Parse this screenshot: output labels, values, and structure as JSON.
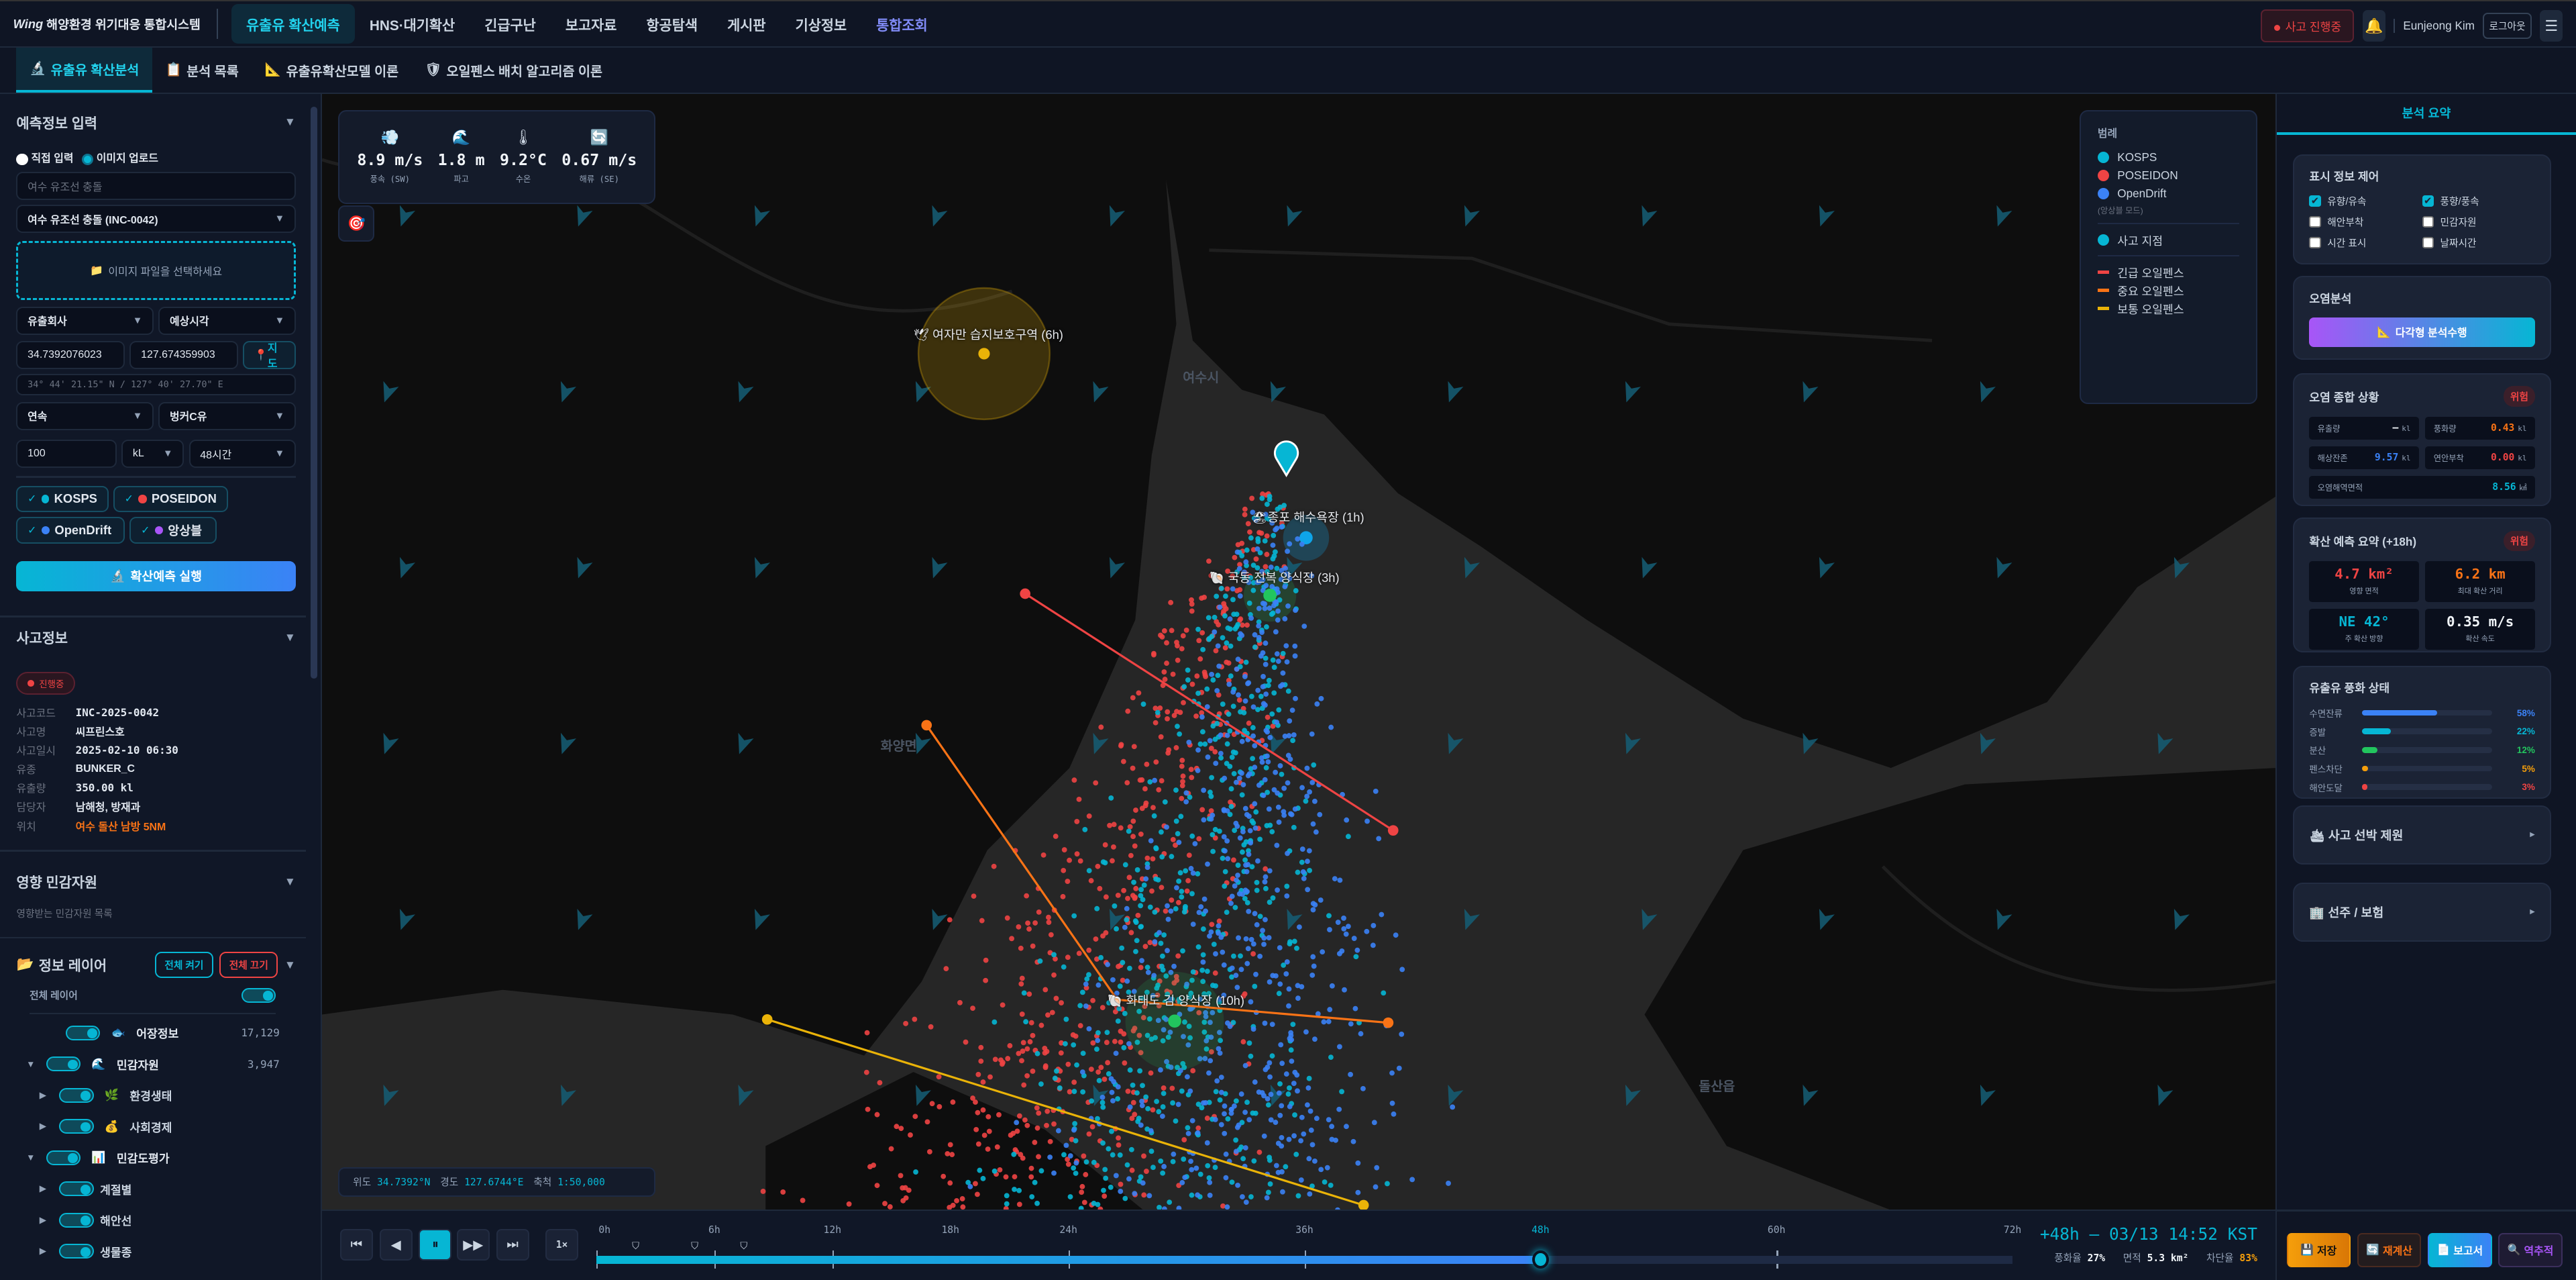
{
  "app": {
    "logo": "Wing",
    "title": "해양환경 위기대응 통합시스템"
  },
  "nav": {
    "items": [
      "유출유 확산예측",
      "HNS·대기확산",
      "긴급구난",
      "보고자료",
      "항공탐색",
      "게시판",
      "기상정보",
      "통합조회"
    ],
    "active_index": 0,
    "incident_badge": "사고 진행중",
    "bell_icon": "bell-icon",
    "user": "Eunjeong Kim",
    "logout": "로그아웃",
    "menu_icon": "hamburger-icon"
  },
  "subtabs": [
    {
      "label": "유출유 확산분석",
      "icon": "microscope-icon",
      "active": true
    },
    {
      "label": "분석 목록",
      "icon": "clipboard-icon"
    },
    {
      "label": "유출유확산모델 이론",
      "icon": "triangle-ruler-icon"
    },
    {
      "label": "오일펜스 배치 알고리즘 이론",
      "icon": "shield-icon"
    }
  ],
  "predict_input": {
    "title": "예측정보 입력",
    "mode_options": [
      "직접 입력",
      "이미지 업로드"
    ],
    "mode_selected": "이미지 업로드",
    "name_placeholder": "여수 유조선 충돌",
    "incident_select": "여수 유조선 충돌 (INC-0042)",
    "dropzone": "이미지 파일을 선택하세요",
    "company_select": "유출회사",
    "time_select": "예상시각",
    "lat": "34.7392076023",
    "lng": "127.674359903",
    "map_button": "지도",
    "dms": "34° 44' 21.15\" N / 127° 40' 27.70\" E",
    "spill_type": "연속",
    "oil_type": "벙커C유",
    "amount": "100",
    "unit": "kL",
    "duration": "48시간",
    "models": [
      {
        "label": "KOSPS",
        "color": "#06b6d4",
        "checked": true
      },
      {
        "label": "POSEIDON",
        "color": "#ef4444",
        "checked": true
      },
      {
        "label": "OpenDrift",
        "color": "#3b82f6",
        "checked": true
      },
      {
        "label": "앙상블",
        "color": "#a855f7",
        "checked": true
      }
    ],
    "run_button": "확산예측 실행"
  },
  "incident": {
    "title": "사고정보",
    "status": "진행중",
    "rows": [
      {
        "k": "사고코드",
        "v": "INC-2025-0042"
      },
      {
        "k": "사고명",
        "v": "씨프린스호"
      },
      {
        "k": "사고일시",
        "v": "2025-02-10 06:30"
      },
      {
        "k": "유종",
        "v": "BUNKER_C"
      },
      {
        "k": "유출량",
        "v": "350.00 kl"
      },
      {
        "k": "담당자",
        "v": "남해청, 방재과"
      },
      {
        "k": "위치",
        "v": "여수 돌산 남방 5NM"
      }
    ]
  },
  "sensitive": {
    "title": "영향 민감자원",
    "subtitle": "영향받는 민감자원 목록"
  },
  "layers": {
    "title": "정보 레이어",
    "all_on": "전체 켜기",
    "all_off": "전체 끄기",
    "all_label": "전체 레이어",
    "items": [
      {
        "label": "어장정보",
        "icon": "fish-icon",
        "glyph": "🐟",
        "count": "17,129",
        "level": 0,
        "expander": ""
      },
      {
        "label": "민감자원",
        "icon": "wave-icon",
        "glyph": "🌊",
        "count": "3,947",
        "level": 0,
        "expander": "▼"
      },
      {
        "label": "환경생태",
        "icon": "plant-icon",
        "glyph": "🌿",
        "count": "",
        "level": 1,
        "expander": "▶"
      },
      {
        "label": "사회경제",
        "icon": "money-bag-icon",
        "glyph": "💰",
        "count": "",
        "level": 1,
        "expander": "▶"
      },
      {
        "label": "민감도평가",
        "icon": "bar-chart-icon",
        "glyph": "📊",
        "count": "",
        "level": 0,
        "expander": "▼"
      },
      {
        "label": "계절별",
        "icon": "",
        "glyph": "",
        "count": "",
        "level": 1,
        "expander": "▶"
      },
      {
        "label": "해안선",
        "icon": "",
        "glyph": "",
        "count": "",
        "level": 1,
        "expander": "▶"
      },
      {
        "label": "생물종",
        "icon": "",
        "glyph": "",
        "count": "",
        "level": 1,
        "expander": "▶"
      }
    ]
  },
  "weather": [
    {
      "icon": "wind-icon",
      "glyph": "💨",
      "value": "8.9 m/s",
      "label": "풍속 (SW)"
    },
    {
      "icon": "wave-icon",
      "glyph": "🌊",
      "value": "1.8 m",
      "label": "파고"
    },
    {
      "icon": "thermometer-icon",
      "glyph": "🌡",
      "value": "9.2°C",
      "label": "수온"
    },
    {
      "icon": "current-icon",
      "glyph": "🔄",
      "value": "0.67 m/s",
      "label": "해류 (SE)"
    }
  ],
  "legend": {
    "title": "범례",
    "models": [
      {
        "label": "KOSPS",
        "color": "#06b6d4"
      },
      {
        "label": "POSEIDON",
        "color": "#ef4444"
      },
      {
        "label": "OpenDrift",
        "color": "#3b82f6"
      }
    ],
    "ensemble_note": "(앙상블 모드)",
    "incident": {
      "label": "사고 지점",
      "color": "#06b6d4"
    },
    "fences": [
      {
        "label": "긴급 오일펜스",
        "color": "#ef4444"
      },
      {
        "label": "중요 오일펜스",
        "color": "#f97316"
      },
      {
        "label": "보통 오일펜스",
        "color": "#eab308"
      }
    ]
  },
  "map": {
    "place_labels": [
      "여수시",
      "화양면",
      "돌산읍"
    ],
    "resources": [
      {
        "label": "여자만 습지보호구역 (6h)",
        "icon": "bird-icon",
        "color": "#eab308"
      },
      {
        "label": "종포 해수욕장 (1h)",
        "icon": "beach-icon",
        "color": "#0ea5e9"
      },
      {
        "label": "국동 전복 양식장 (3h)",
        "icon": "shell-icon",
        "color": "#22c55e"
      },
      {
        "label": "화태도 김 양식장 (10h)",
        "icon": "shell-icon",
        "color": "#22c55e"
      }
    ],
    "coord_readout": {
      "lat_label": "위도",
      "lat": "34.7392°N",
      "lng_label": "경도",
      "lng": "127.6744°E",
      "scale_label": "축척",
      "scale": "1:50,000"
    }
  },
  "timeline": {
    "labels": [
      "0h",
      "6h",
      "12h",
      "18h",
      "24h",
      "36h",
      "48h",
      "60h",
      "72h"
    ],
    "label_hours": [
      0,
      6,
      12,
      18,
      24,
      36,
      48,
      60,
      72
    ],
    "max_hours": 72,
    "current_hours": 48,
    "speed": "1×",
    "status": "+48h — 03/13 14:52 KST",
    "weathering_label": "풍화율",
    "weathering": "27%",
    "area_label": "면적",
    "area": "5.3 km²",
    "block_label": "차단율",
    "block": "83%"
  },
  "right": {
    "tab": "분석 요약",
    "display_control": {
      "title": "표시 정보 제어",
      "items": [
        {
          "label": "유향/유속",
          "checked": true
        },
        {
          "label": "풍향/풍속",
          "checked": true
        },
        {
          "label": "해안부착",
          "checked": false
        },
        {
          "label": "민감자원",
          "checked": false
        },
        {
          "label": "시간 표시",
          "checked": false
        },
        {
          "label": "날짜시간",
          "checked": false
        }
      ]
    },
    "pollution_analysis": {
      "title": "오염분석",
      "button": "다각형 분석수행"
    },
    "pollution_status": {
      "title": "오염 종합 상황",
      "level": "위험",
      "cells": [
        {
          "k": "유출량",
          "v": "—",
          "u": "kl",
          "color": "#f1f5f9"
        },
        {
          "k": "풍화량",
          "v": "0.43",
          "u": "kl",
          "color": "#f97316"
        },
        {
          "k": "해상잔존",
          "v": "9.57",
          "u": "kl",
          "color": "#3b82f6"
        },
        {
          "k": "연안부착",
          "v": "0.00",
          "u": "kl",
          "color": "#ef4444"
        },
        {
          "k": "오염해역면적",
          "v": "8.56",
          "u": "㎢",
          "color": "#06b6d4"
        }
      ]
    },
    "forecast": {
      "title": "확산 예측 요약 (+18h)",
      "level": "위험",
      "cells": [
        {
          "v": "4.7 km²",
          "l": "영향 면적",
          "color": "#ef4444"
        },
        {
          "v": "6.2 km",
          "l": "최대 확산 거리",
          "color": "#f97316"
        },
        {
          "v": "NE 42°",
          "l": "주 확산 방향",
          "color": "#06b6d4"
        },
        {
          "v": "0.35 m/s",
          "l": "확산 속도",
          "color": "#f1f5f9"
        }
      ]
    },
    "weathering": {
      "title": "유출유 풍화 상태",
      "rows": [
        {
          "k": "수면잔류",
          "pct": 58,
          "label": "58%",
          "color": "#3b82f6"
        },
        {
          "k": "증발",
          "pct": 22,
          "label": "22%",
          "color": "#06b6d4"
        },
        {
          "k": "분산",
          "pct": 12,
          "label": "12%",
          "color": "#22c55e"
        },
        {
          "k": "펜스차단",
          "pct": 5,
          "label": "5%",
          "color": "#f59e0b"
        },
        {
          "k": "해안도달",
          "pct": 3,
          "label": "3%",
          "color": "#ef4444"
        }
      ]
    },
    "ship_spec": "사고 선박 제원",
    "owner_insurance": "선주 / 보험",
    "actions": [
      {
        "label": "저장",
        "icon": "floppy-icon",
        "glyph": "💾"
      },
      {
        "label": "재계산",
        "icon": "refresh-icon",
        "glyph": "🔄"
      },
      {
        "label": "보고서",
        "icon": "document-icon",
        "glyph": "📄"
      },
      {
        "label": "역추적",
        "icon": "magnifier-icon",
        "glyph": "🔍"
      }
    ]
  }
}
